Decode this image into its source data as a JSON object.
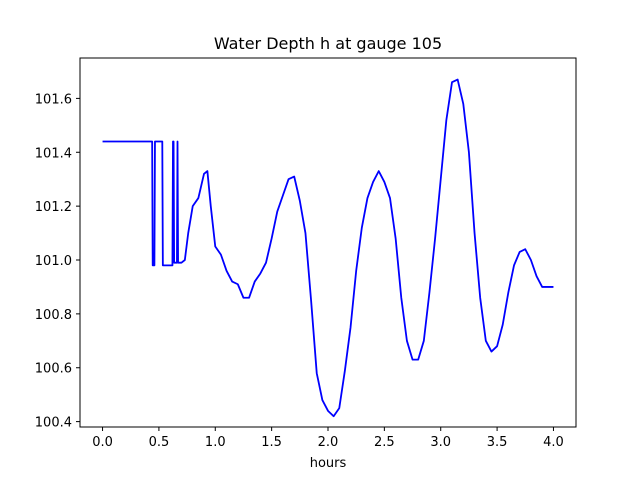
{
  "chart_data": {
    "type": "line",
    "title": "Water Depth h at gauge 105",
    "xlabel": "hours",
    "ylabel": "",
    "xlim": [
      -0.2,
      4.2
    ],
    "ylim": [
      100.38,
      101.75
    ],
    "xticks": [
      0.0,
      0.5,
      1.0,
      1.5,
      2.0,
      2.5,
      3.0,
      3.5,
      4.0
    ],
    "xtick_labels": [
      "0.0",
      "0.5",
      "1.0",
      "1.5",
      "2.0",
      "2.5",
      "3.0",
      "3.5",
      "4.0"
    ],
    "yticks": [
      100.4,
      100.6,
      100.8,
      101.0,
      101.2,
      101.4,
      101.6
    ],
    "ytick_labels": [
      "100.4",
      "100.6",
      "100.8",
      "101.0",
      "101.2",
      "101.4",
      "101.6"
    ],
    "grid": false,
    "series": [
      {
        "color": "#0000ff",
        "x": [
          0.0,
          0.44,
          0.445,
          0.46,
          0.465,
          0.53,
          0.535,
          0.62,
          0.625,
          0.63,
          0.635,
          0.66,
          0.665,
          0.67,
          0.7,
          0.73,
          0.76,
          0.8,
          0.85,
          0.9,
          0.93,
          0.96,
          1.0,
          1.05,
          1.1,
          1.15,
          1.2,
          1.25,
          1.3,
          1.35,
          1.4,
          1.45,
          1.5,
          1.55,
          1.6,
          1.65,
          1.7,
          1.75,
          1.8,
          1.85,
          1.9,
          1.95,
          2.0,
          2.05,
          2.1,
          2.15,
          2.2,
          2.25,
          2.3,
          2.35,
          2.4,
          2.45,
          2.5,
          2.55,
          2.6,
          2.65,
          2.7,
          2.75,
          2.8,
          2.85,
          2.9,
          2.95,
          3.0,
          3.05,
          3.1,
          3.15,
          3.2,
          3.25,
          3.3,
          3.35,
          3.4,
          3.45,
          3.5,
          3.55,
          3.6,
          3.65,
          3.7,
          3.75,
          3.8,
          3.85,
          3.9,
          3.95,
          4.0
        ],
        "y": [
          101.44,
          101.44,
          100.98,
          100.98,
          101.44,
          101.44,
          100.98,
          100.98,
          101.44,
          101.44,
          100.99,
          100.99,
          101.44,
          100.99,
          100.99,
          101.0,
          101.1,
          101.2,
          101.23,
          101.32,
          101.33,
          101.2,
          101.05,
          101.02,
          100.96,
          100.92,
          100.91,
          100.86,
          100.86,
          100.92,
          100.95,
          100.99,
          101.08,
          101.18,
          101.24,
          101.3,
          101.31,
          101.22,
          101.1,
          100.85,
          100.58,
          100.48,
          100.44,
          100.42,
          100.45,
          100.59,
          100.75,
          100.96,
          101.12,
          101.23,
          101.29,
          101.33,
          101.29,
          101.23,
          101.08,
          100.86,
          100.7,
          100.63,
          100.63,
          100.7,
          100.88,
          101.08,
          101.3,
          101.52,
          101.66,
          101.67,
          101.58,
          101.4,
          101.1,
          100.86,
          100.7,
          100.66,
          100.68,
          100.76,
          100.88,
          100.98,
          101.03,
          101.04,
          101.0,
          100.94,
          100.9,
          100.9,
          100.9
        ]
      }
    ]
  }
}
